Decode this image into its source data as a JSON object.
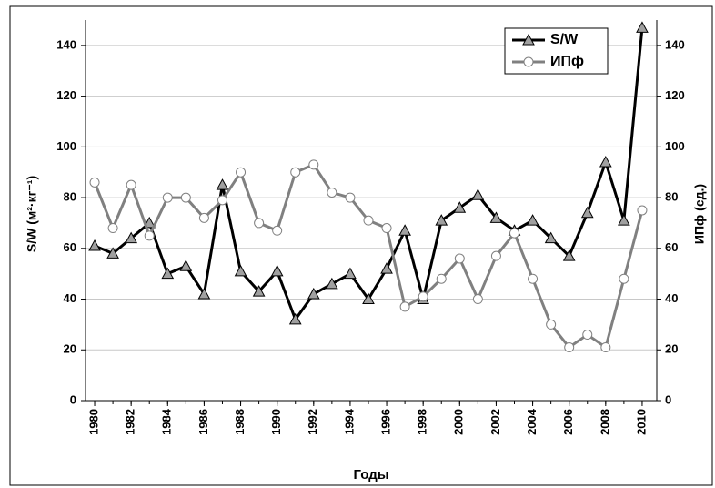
{
  "chart_data": {
    "type": "line",
    "x": [
      1980,
      1981,
      1982,
      1983,
      1984,
      1985,
      1986,
      1987,
      1988,
      1989,
      1990,
      1991,
      1992,
      1993,
      1994,
      1995,
      1996,
      1997,
      1998,
      1999,
      2000,
      2001,
      2002,
      2003,
      2004,
      2005,
      2006,
      2007,
      2008,
      2009,
      2010
    ],
    "xlim": [
      1979.5,
      2010.8
    ],
    "xticks": [
      1980,
      1982,
      1984,
      1986,
      1988,
      1990,
      1992,
      1994,
      1996,
      1998,
      2000,
      2002,
      2004,
      2006,
      2008,
      2010
    ],
    "xlabel": "Годы",
    "ylabel": "S/W (м²·кг⁻¹)",
    "y2label": "ИПф (ед.)",
    "ylim": [
      0,
      150
    ],
    "yticks": [
      0,
      20,
      40,
      60,
      80,
      100,
      120,
      140
    ],
    "y2lim": [
      0,
      150
    ],
    "y2ticks": [
      0,
      20,
      40,
      60,
      80,
      100,
      120,
      140
    ],
    "grid": true,
    "legend": "top-right",
    "series": [
      {
        "name": "S/W",
        "color": "#000000",
        "marker": "triangle",
        "values": [
          61,
          58,
          64,
          70,
          50,
          53,
          42,
          85,
          51,
          43,
          51,
          32,
          42,
          46,
          50,
          40,
          52,
          67,
          40,
          71,
          76,
          81,
          72,
          67,
          71,
          64,
          57,
          74,
          94,
          71,
          147
        ]
      },
      {
        "name": "ИПф",
        "color": "#808080",
        "marker": "circle",
        "axis": "y2",
        "values": [
          86,
          68,
          85,
          65,
          80,
          80,
          72,
          79,
          90,
          70,
          67,
          90,
          93,
          82,
          80,
          71,
          68,
          37,
          41,
          48,
          56,
          40,
          57,
          66,
          48,
          30,
          21,
          26,
          21,
          48,
          75
        ]
      }
    ]
  }
}
